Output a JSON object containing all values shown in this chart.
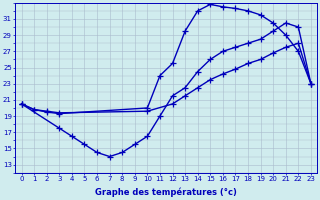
{
  "bg_color": "#d0ecee",
  "grid_color": "#aabbcc",
  "line_color": "#0000bb",
  "xlabel": "Graphe des températures (°c)",
  "ylabel_ticks": [
    13,
    15,
    17,
    19,
    21,
    23,
    25,
    27,
    29,
    31
  ],
  "xticks": [
    0,
    1,
    2,
    3,
    4,
    5,
    6,
    7,
    8,
    9,
    10,
    11,
    12,
    13,
    14,
    15,
    16,
    17,
    18,
    19,
    20,
    21,
    22,
    23
  ],
  "xlim": [
    -0.5,
    23.5
  ],
  "ylim": [
    12,
    33
  ],
  "line1_x": [
    0,
    1,
    2,
    3,
    10,
    11,
    12,
    13,
    14,
    15,
    16,
    17,
    18,
    19,
    20,
    21,
    22,
    23
  ],
  "line1_y": [
    20.5,
    19.8,
    19.5,
    19.3,
    20.0,
    24.0,
    25.5,
    29.5,
    32.0,
    32.8,
    32.5,
    32.3,
    32.0,
    31.5,
    30.5,
    29.0,
    27.0,
    23.0
  ],
  "line2_x": [
    0,
    3,
    4,
    5,
    6,
    7,
    8,
    9,
    10,
    11,
    12,
    13,
    14,
    15,
    16,
    17,
    18,
    19,
    20,
    21,
    22,
    23
  ],
  "line2_y": [
    20.5,
    17.5,
    16.5,
    15.5,
    14.5,
    14.0,
    14.5,
    15.5,
    16.5,
    19.0,
    21.5,
    22.5,
    24.5,
    26.0,
    27.0,
    27.5,
    28.0,
    28.5,
    29.5,
    30.5,
    30.0,
    23.0
  ],
  "line3_x": [
    0,
    1,
    2,
    3,
    10,
    12,
    13,
    14,
    15,
    16,
    17,
    18,
    19,
    20,
    21,
    22,
    23
  ],
  "line3_y": [
    20.5,
    19.8,
    19.6,
    19.4,
    19.6,
    20.5,
    21.5,
    22.5,
    23.5,
    24.2,
    24.8,
    25.5,
    26.0,
    26.8,
    27.5,
    28.0,
    23.0
  ]
}
